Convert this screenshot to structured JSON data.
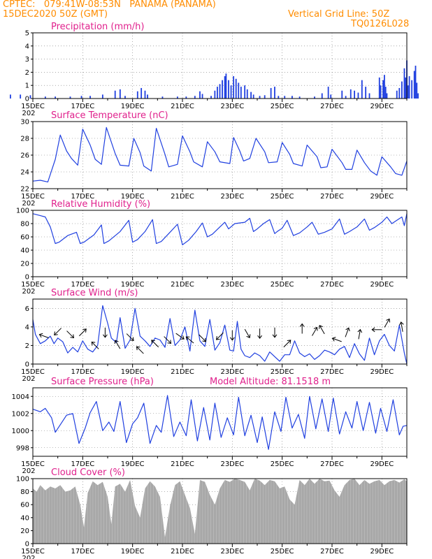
{
  "header": {
    "line1": "CPTEC:   079:41W-08:53N   PANAMA (PANAMA)",
    "line2": "15DEC2020 50Z (GMT)",
    "grid_note": "Vertical Grid Line: 50Z",
    "code": "TQ0126L028",
    "text_color": "#ff8c00"
  },
  "colors": {
    "series": "#2040e0",
    "bars": "#1f3fe0",
    "cloud": "#a8a8a8",
    "title": "#e0208c"
  },
  "x_axis": {
    "labels": [
      "15DEC",
      "17DEC",
      "19DEC",
      "21DEC",
      "23DEC",
      "25DEC",
      "27DEC",
      "29DEC"
    ],
    "year_fragment": "202"
  },
  "chart_data": [
    {
      "id": "precip",
      "type": "bar",
      "title": "Precipitation (mm/h)",
      "ylim": [
        0,
        5
      ],
      "yticks": [
        0,
        1,
        2,
        3,
        4,
        5
      ],
      "xlim_days": [
        0,
        15
      ],
      "values": [
        [
          0.4,
          0.05
        ],
        [
          1.9,
          0.05
        ],
        [
          2.6,
          0.1
        ],
        [
          3.3,
          0.15
        ],
        [
          3.8,
          0.1
        ],
        [
          4.2,
          0.05
        ],
        [
          4.8,
          0.1
        ],
        [
          5.5,
          0.2
        ],
        [
          5.8,
          0.3
        ],
        [
          6.6,
          0.4
        ],
        [
          7.2,
          0.3
        ],
        [
          7.8,
          0.5
        ],
        [
          8.1,
          0.4
        ],
        [
          8.7,
          0.2
        ],
        [
          9.3,
          1.0
        ],
        [
          9.45,
          0.3
        ],
        [
          9.7,
          0.45
        ],
        [
          9.78,
          0.35
        ],
        [
          9.82,
          1.2
        ],
        [
          9.86,
          0.5
        ],
        [
          9.9,
          0.3
        ],
        [
          10.4,
          0.35
        ],
        [
          10.8,
          0.3
        ],
        [
          11.3,
          0.2
        ],
        [
          11.9,
          0.3
        ],
        [
          12.2,
          0.4
        ],
        [
          12.5,
          0.7
        ],
        [
          12.9,
          0.9
        ],
        [
          13.1,
          0.2
        ],
        [
          13.6,
          0.15
        ],
        [
          14.1,
          0.3
        ],
        [
          14.5,
          0.3
        ],
        [
          14.9,
          0.25
        ],
        [
          15.5,
          0.15
        ],
        [
          15.9,
          0.15
        ],
        [
          16.5,
          0.15
        ],
        [
          16.95,
          0.2
        ],
        [
          17.3,
          0.2
        ],
        [
          17.8,
          0.3
        ],
        [
          18.3,
          0.6
        ],
        [
          18.5,
          0.7
        ],
        [
          18.7,
          0.2
        ],
        [
          19.2,
          0.55
        ],
        [
          19.35,
          0.8
        ],
        [
          19.5,
          0.6
        ],
        [
          19.6,
          0.3
        ],
        [
          20.2,
          0.15
        ],
        [
          20.8,
          0.15
        ],
        [
          21.15,
          0.15
        ],
        [
          21.5,
          0.2
        ],
        [
          21.7,
          0.55
        ],
        [
          21.8,
          0.35
        ],
        [
          22.15,
          0.2
        ],
        [
          22.3,
          0.6
        ],
        [
          22.4,
          0.9
        ],
        [
          22.5,
          1.1
        ],
        [
          22.6,
          1.4
        ],
        [
          22.7,
          1.7
        ],
        [
          22.75,
          1.9
        ],
        [
          22.85,
          1.4
        ],
        [
          22.95,
          1.0
        ],
        [
          23.05,
          1.7
        ],
        [
          23.15,
          1.5
        ],
        [
          23.25,
          1.2
        ],
        [
          23.35,
          0.9
        ],
        [
          23.5,
          1.0
        ],
        [
          23.6,
          0.7
        ],
        [
          23.75,
          0.5
        ],
        [
          23.85,
          0.3
        ],
        [
          24.1,
          0.2
        ],
        [
          24.3,
          0.25
        ],
        [
          24.55,
          0.8
        ],
        [
          24.7,
          0.9
        ],
        [
          24.85,
          0.2
        ],
        [
          25.1,
          0.2
        ],
        [
          25.4,
          0.2
        ],
        [
          25.7,
          0.15
        ],
        [
          26.3,
          0.15
        ],
        [
          26.6,
          0.4
        ],
        [
          26.85,
          0.9
        ],
        [
          26.95,
          0.3
        ],
        [
          27.4,
          0.6
        ],
        [
          27.55,
          0.2
        ],
        [
          27.75,
          0.7
        ],
        [
          27.9,
          0.6
        ],
        [
          28.05,
          0.45
        ],
        [
          28.2,
          1.4
        ],
        [
          28.35,
          0.9
        ],
        [
          28.5,
          0.4
        ],
        [
          28.9,
          1.6
        ],
        [
          28.95,
          1.0
        ],
        [
          29.05,
          1.4
        ],
        [
          29.1,
          1.8
        ],
        [
          29.15,
          0.9
        ],
        [
          29.2,
          0.4
        ],
        [
          29.6,
          0.6
        ],
        [
          29.7,
          0.8
        ],
        [
          29.8,
          1.3
        ],
        [
          29.9,
          2.3
        ],
        [
          29.95,
          1.6
        ],
        [
          30.0,
          2.9
        ],
        [
          30.05,
          1.0
        ],
        [
          30.1,
          1.7
        ],
        [
          30.2,
          1.4
        ],
        [
          30.3,
          2.1
        ],
        [
          30.35,
          2.5
        ],
        [
          30.4,
          1.2
        ],
        [
          30.45,
          0.4
        ]
      ]
    },
    {
      "id": "temp",
      "type": "line",
      "title": "Surface Temperature (nC)",
      "ylim": [
        22,
        30
      ],
      "yticks": [
        22,
        24,
        26,
        28,
        30
      ],
      "x": [
        0,
        0.3,
        0.6,
        0.9,
        1.1,
        1.35,
        1.55,
        1.8,
        2.0,
        2.3,
        2.5,
        2.75,
        2.95,
        3.3,
        3.5,
        3.85,
        4.05,
        4.3,
        4.45,
        4.75,
        4.95,
        5.3,
        5.45,
        5.8,
        6.0,
        6.3,
        6.45,
        6.8,
        7.0,
        7.3,
        7.5,
        7.9,
        8.05,
        8.3,
        8.45,
        8.7,
        8.95,
        9.3,
        9.45,
        9.8,
        10.0,
        10.3,
        10.45,
        10.8,
        11.0,
        11.4,
        11.55,
        11.8,
        12.0,
        12.4,
        12.55,
        12.8,
        13.0,
        13.3,
        13.55,
        13.8,
        14.0,
        14.35,
        14.55,
        14.8,
        15.0
      ],
      "values": [
        22.9,
        23.0,
        22.8,
        25.5,
        28.4,
        26.5,
        25.6,
        24.8,
        29.1,
        27.2,
        25.5,
        24.9,
        29.3,
        26.2,
        24.8,
        24.7,
        28.0,
        26.3,
        24.7,
        24.1,
        29.2,
        26.1,
        24.6,
        24.9,
        28.3,
        26.4,
        25.2,
        24.6,
        27.6,
        26.4,
        25.2,
        25.0,
        28.1,
        26.5,
        25.3,
        25.6,
        28.0,
        26.4,
        25.1,
        25.2,
        27.5,
        26.1,
        25.0,
        24.7,
        27.2,
        25.8,
        24.5,
        24.6,
        26.7,
        25.1,
        24.3,
        24.3,
        26.6,
        25.1,
        24.1,
        23.6,
        25.8,
        24.6,
        23.8,
        23.6,
        25.3
      ]
    },
    {
      "id": "rh",
      "type": "line",
      "title": "Relative Humidity (%)",
      "ylim": [
        0,
        100
      ],
      "yticks": [
        0,
        20,
        40,
        60,
        80,
        100
      ],
      "x": [
        0,
        0.3,
        0.5,
        0.7,
        0.9,
        1.05,
        1.4,
        1.75,
        1.9,
        2.05,
        2.45,
        2.75,
        2.85,
        3.05,
        3.5,
        3.85,
        4.0,
        4.2,
        4.5,
        4.8,
        4.95,
        5.15,
        5.45,
        5.8,
        6.0,
        6.25,
        6.55,
        6.8,
        7.0,
        7.2,
        7.5,
        7.7,
        7.85,
        8.1,
        8.5,
        8.7,
        8.85,
        9.0,
        9.25,
        9.5,
        9.7,
        9.8,
        10.0,
        10.2,
        10.45,
        10.7,
        11.0,
        11.2,
        11.45,
        11.7,
        12.0,
        12.3,
        12.5,
        12.7,
        13.0,
        13.3,
        13.5,
        13.7,
        14.0,
        14.2,
        14.4,
        14.6,
        14.8,
        14.9,
        15.0
      ],
      "values": [
        95,
        92,
        90,
        75,
        50,
        52,
        62,
        67,
        50,
        52,
        63,
        78,
        50,
        54,
        68,
        85,
        52,
        56,
        68,
        86,
        50,
        53,
        65,
        79,
        48,
        55,
        68,
        81,
        60,
        64,
        75,
        82,
        72,
        80,
        82,
        88,
        68,
        72,
        80,
        86,
        65,
        68,
        73,
        85,
        62,
        66,
        75,
        82,
        64,
        67,
        72,
        87,
        64,
        68,
        75,
        87,
        70,
        74,
        82,
        90,
        80,
        85,
        90,
        77,
        95
      ]
    },
    {
      "id": "wind",
      "type": "line",
      "title": "Surface Wind (m/s)",
      "ylim": [
        0,
        7
      ],
      "yticks": [
        0,
        2,
        4,
        6
      ],
      "x": [
        0,
        0.1,
        0.3,
        0.5,
        0.7,
        0.85,
        1.0,
        1.2,
        1.4,
        1.6,
        1.8,
        2.0,
        2.2,
        2.4,
        2.6,
        2.8,
        3.0,
        3.15,
        3.35,
        3.5,
        3.7,
        3.9,
        4.1,
        4.3,
        4.5,
        4.7,
        4.9,
        5.1,
        5.3,
        5.5,
        5.7,
        5.9,
        6.1,
        6.3,
        6.5,
        6.7,
        6.9,
        7.1,
        7.3,
        7.5,
        7.7,
        7.9,
        8.05,
        8.2,
        8.35,
        8.5,
        8.7,
        8.9,
        9.1,
        9.3,
        9.5,
        9.7,
        9.9,
        10.1,
        10.3,
        10.5,
        10.7,
        10.9,
        11.1,
        11.3,
        11.5,
        11.7,
        11.9,
        12.1,
        12.3,
        12.5,
        12.7,
        12.9,
        13.1,
        13.3,
        13.5,
        13.7,
        13.9,
        14.1,
        14.3,
        14.5,
        14.7,
        14.9,
        15.0
      ],
      "values": [
        4.8,
        3.2,
        2.2,
        2.5,
        3.0,
        2.2,
        2.8,
        2.4,
        1.2,
        1.8,
        1.3,
        2.5,
        1.6,
        1.3,
        2.0,
        6.3,
        4.4,
        2.8,
        2.3,
        5.0,
        1.7,
        2.6,
        6.0,
        3.0,
        2.5,
        1.9,
        2.8,
        2.6,
        1.8,
        4.9,
        2.0,
        2.6,
        4.0,
        1.4,
        5.8,
        2.5,
        1.9,
        4.8,
        1.5,
        2.3,
        4.2,
        1.5,
        1.4,
        4.6,
        1.6,
        0.9,
        0.7,
        1.2,
        0.9,
        0.3,
        1.3,
        0.8,
        0.3,
        1.0,
        1.0,
        2.5,
        1.2,
        0.8,
        1.1,
        0.5,
        0.9,
        1.5,
        1.3,
        1.0,
        1.6,
        1.9,
        0.7,
        2.2,
        1.1,
        0.4,
        2.8,
        1.0,
        2.5,
        3.2,
        2.0,
        1.4,
        4.2,
        1.2,
        0.0
      ]
    },
    {
      "id": "press",
      "type": "line",
      "title": "Surface Pressure (hPa)",
      "ylim": [
        997,
        1005
      ],
      "yticks": [
        998,
        1000,
        1002,
        1004
      ],
      "x": [
        0,
        0.3,
        0.5,
        0.75,
        0.9,
        1.15,
        1.35,
        1.6,
        1.85,
        2.1,
        2.3,
        2.55,
        2.8,
        3.05,
        3.25,
        3.5,
        3.75,
        4.0,
        4.2,
        4.45,
        4.7,
        4.95,
        5.15,
        5.4,
        5.65,
        5.9,
        6.15,
        6.35,
        6.6,
        6.85,
        7.1,
        7.3,
        7.55,
        7.8,
        8.05,
        8.25,
        8.5,
        8.75,
        9.0,
        9.2,
        9.45,
        9.7,
        9.95,
        10.15,
        10.4,
        10.65,
        10.9,
        11.1,
        11.35,
        11.6,
        11.85,
        12.05,
        12.3,
        12.55,
        12.8,
        13.0,
        13.25,
        13.5,
        13.75,
        13.95,
        14.2,
        14.45,
        14.7,
        14.85,
        15.0
      ],
      "values": [
        1002.5,
        1002.2,
        1002.6,
        1001.5,
        999.8,
        1000.9,
        1001.8,
        1002.0,
        998.5,
        1000.3,
        1002.1,
        1003.4,
        1000.0,
        1001.0,
        999.9,
        1003.4,
        998.6,
        1000.8,
        1001.5,
        1003.2,
        998.5,
        1000.6,
        999.8,
        1004.1,
        999.3,
        1001.0,
        999.4,
        1003.6,
        998.8,
        1002.7,
        998.9,
        1003.2,
        999.2,
        1001.5,
        999.5,
        1003.9,
        999.4,
        1001.8,
        998.6,
        1001.6,
        997.8,
        1002.2,
        999.9,
        1003.9,
        1000.3,
        1001.9,
        999.1,
        1004.0,
        1000.2,
        1003.7,
        999.9,
        1003.8,
        999.6,
        1002.2,
        1000.3,
        1003.4,
        1000.0,
        1003.3,
        999.7,
        1002.6,
        999.9,
        1003.6,
        999.5,
        1000.5,
        1000.6
      ]
    },
    {
      "id": "cloud",
      "type": "area",
      "title": "Cloud Cover (%)",
      "ylim": [
        0,
        100
      ],
      "yticks": [
        0,
        20,
        40,
        60,
        80,
        100
      ],
      "x": [
        0,
        0.15,
        0.3,
        0.5,
        0.7,
        0.9,
        1.1,
        1.3,
        1.5,
        1.7,
        1.9,
        2.05,
        2.2,
        2.4,
        2.6,
        2.8,
        3.0,
        3.15,
        3.3,
        3.5,
        3.7,
        3.9,
        4.1,
        4.3,
        4.5,
        4.7,
        4.9,
        5.1,
        5.3,
        5.5,
        5.7,
        5.9,
        6.1,
        6.3,
        6.5,
        6.7,
        6.9,
        7.1,
        7.3,
        7.5,
        7.7,
        7.9,
        8.1,
        8.3,
        8.5,
        8.7,
        8.9,
        9.1,
        9.3,
        9.5,
        9.7,
        9.9,
        10.1,
        10.3,
        10.5,
        10.7,
        10.9,
        11.1,
        11.3,
        11.5,
        11.7,
        11.9,
        12.1,
        12.3,
        12.5,
        12.7,
        12.9,
        13.1,
        13.3,
        13.5,
        13.7,
        13.9,
        14.1,
        14.3,
        14.5,
        14.7,
        14.9,
        15.0
      ],
      "values": [
        85,
        80,
        90,
        82,
        88,
        85,
        90,
        80,
        82,
        88,
        60,
        25,
        78,
        96,
        90,
        95,
        72,
        30,
        88,
        92,
        80,
        98,
        58,
        40,
        85,
        96,
        88,
        72,
        10,
        58,
        90,
        96,
        75,
        55,
        15,
        98,
        95,
        75,
        60,
        85,
        98,
        95,
        100,
        98,
        95,
        82,
        100,
        97,
        90,
        98,
        96,
        85,
        88,
        68,
        60,
        98,
        90,
        100,
        92,
        100,
        96,
        97,
        82,
        72,
        90,
        98,
        100,
        90,
        98,
        92,
        96,
        98,
        90,
        96,
        98,
        94,
        99,
        96
      ]
    }
  ],
  "model_altitude": "Model Altitude: 81.1518 m"
}
